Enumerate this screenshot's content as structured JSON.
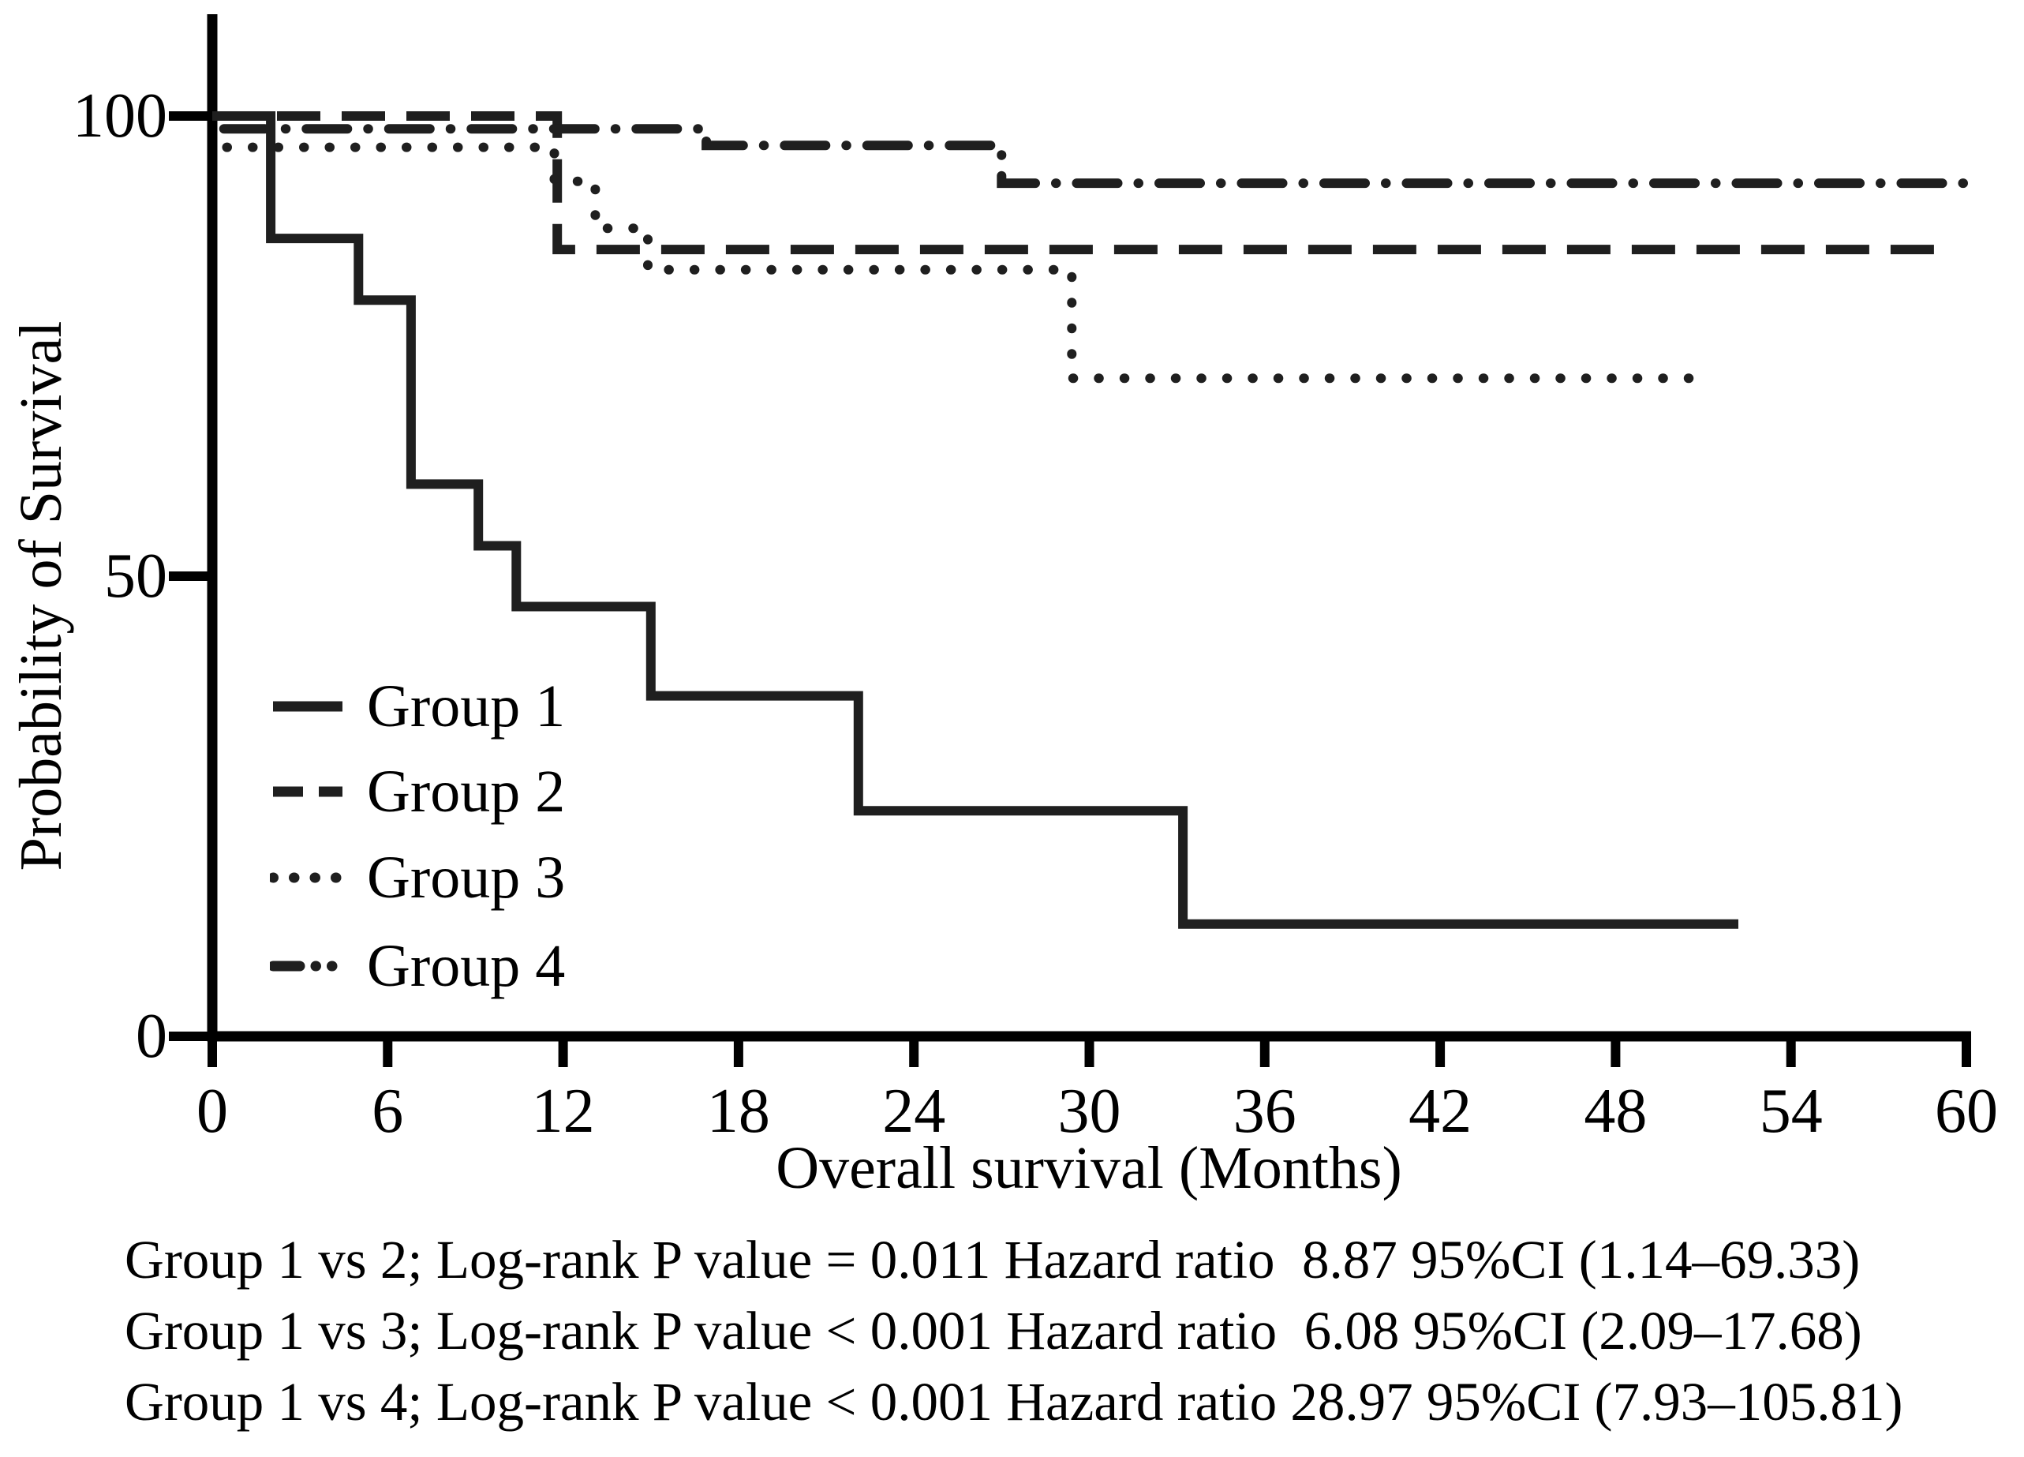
{
  "figure": {
    "background": "#ffffff",
    "curve_color": "#1f1f1f",
    "axis_color": "#000000",
    "text_color": "#000000"
  },
  "chart_data": {
    "type": "line",
    "subtype": "kaplan-meier-step-curves",
    "title": "",
    "xlabel": "Overall survival (Months)",
    "ylabel": "Probability of Survival",
    "xlim": [
      0,
      60
    ],
    "ylim": [
      0,
      105
    ],
    "x_ticks": [
      0,
      6,
      12,
      18,
      24,
      30,
      36,
      42,
      48,
      54,
      60
    ],
    "y_ticks": [
      0,
      50,
      100
    ],
    "grid": false,
    "legend_position": "inside-lower-left",
    "series": [
      {
        "name": "Group 1",
        "style": "solid",
        "points": [
          [
            0,
            100
          ],
          [
            2,
            100
          ],
          [
            2,
            86.7
          ],
          [
            5,
            86.7
          ],
          [
            5,
            80
          ],
          [
            6.8,
            80
          ],
          [
            6.8,
            60
          ],
          [
            9.1,
            60
          ],
          [
            9.1,
            53.3
          ],
          [
            10.4,
            53.3
          ],
          [
            10.4,
            46.7
          ],
          [
            15,
            46.7
          ],
          [
            15,
            37
          ],
          [
            22.1,
            37
          ],
          [
            22.1,
            24.5
          ],
          [
            33.2,
            24.5
          ],
          [
            33.2,
            12.2
          ],
          [
            52.2,
            12.2
          ]
        ]
      },
      {
        "name": "Group 2",
        "style": "dashed",
        "points": [
          [
            0,
            100
          ],
          [
            11.8,
            100
          ],
          [
            11.8,
            85.5
          ],
          [
            59,
            85.5
          ]
        ]
      },
      {
        "name": "Group 3",
        "style": "dotted",
        "points": [
          [
            0.5,
            96.6
          ],
          [
            11.7,
            96.6
          ],
          [
            11.7,
            92.9
          ],
          [
            13.1,
            92.9
          ],
          [
            13.1,
            87.8
          ],
          [
            14.9,
            87.8
          ],
          [
            14.9,
            83.3
          ],
          [
            29.4,
            83.3
          ],
          [
            29.4,
            71.5
          ],
          [
            50.7,
            71.5
          ]
        ]
      },
      {
        "name": "Group 4",
        "style": "dash-dot-dot",
        "points": [
          [
            0.4,
            98.6
          ],
          [
            16.9,
            98.6
          ],
          [
            16.9,
            96.8
          ],
          [
            27,
            96.8
          ],
          [
            27,
            92.7
          ],
          [
            60.2,
            92.7
          ]
        ]
      }
    ]
  },
  "stats": {
    "lines": [
      "Group 1 vs 2; Log-rank P value = 0.011 Hazard ratio  8.87 95%CI (1.14–69.33)",
      "Group 1 vs 3; Log-rank P value < 0.001 Hazard ratio  6.08 95%CI (2.09–17.68)",
      "Group 1 vs 4; Log-rank P value < 0.001 Hazard ratio 28.97 95%CI (7.93–105.81)"
    ]
  }
}
